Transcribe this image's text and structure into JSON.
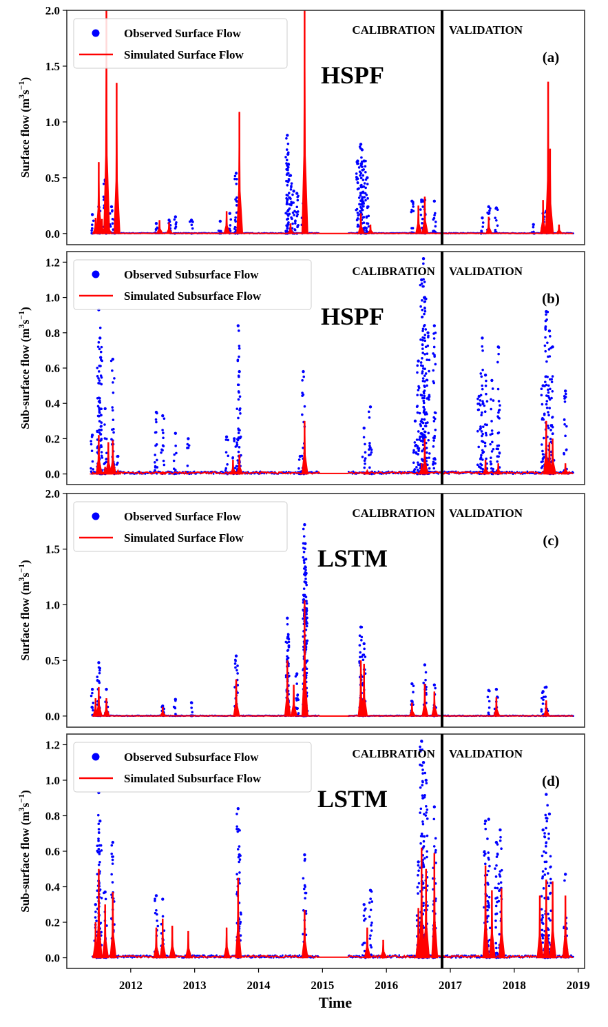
{
  "colors": {
    "observed": "#0000ff",
    "simulated": "#ff0000",
    "divider": "#000000",
    "frame": "#333333"
  },
  "chart_data": [
    {
      "type": "line",
      "panel_label": "(a)",
      "model_label": "HSPF",
      "period_labels": [
        "CALIBRATION",
        "VALIDATION"
      ],
      "split_x": 2016.87,
      "ylabel": "Surface flow (m3s-1)",
      "ylabel_base": "Surface flow (m",
      "ylim": [
        -0.1,
        2.0
      ],
      "yticks": [
        0.0,
        0.5,
        1.0,
        1.5,
        2.0
      ],
      "ytick_labels": [
        "0.0",
        "0.5",
        "1.0",
        "1.5",
        "2.0"
      ],
      "legend": [
        "Observed Surface Flow",
        "Simulated Surface Flow"
      ],
      "legend_placement": "top-left",
      "series": [
        {
          "name": "Observed Surface Flow",
          "kind": "scatter",
          "x": [
            2011.4,
            2011.5,
            2011.6,
            2011.62,
            2011.7,
            2011.75,
            2012.4,
            2012.6,
            2012.7,
            2012.95,
            2013.4,
            2013.55,
            2013.65,
            2013.68,
            2014.45,
            2014.46,
            2014.5,
            2014.55,
            2014.6,
            2014.7,
            2015.55,
            2015.6,
            2015.62,
            2015.65,
            2015.7,
            2016.4,
            2016.55,
            2016.6,
            2016.75,
            2017.5,
            2017.6,
            2017.72,
            2018.3,
            2018.45,
            2018.5
          ],
          "y": [
            0.17,
            0.24,
            0.48,
            0.22,
            0.24,
            0.12,
            0.09,
            0.12,
            0.15,
            0.12,
            0.11,
            0.18,
            0.54,
            0.19,
            0.88,
            0.71,
            0.52,
            0.38,
            0.36,
            0.27,
            0.65,
            0.8,
            0.75,
            0.65,
            0.5,
            0.29,
            0.3,
            0.3,
            0.29,
            0.14,
            0.24,
            0.23,
            0.08,
            0.18,
            0.2
          ]
        },
        {
          "name": "Simulated Surface Flow",
          "kind": "line",
          "x": [
            2011.45,
            2011.5,
            2011.55,
            2011.62,
            2011.65,
            2011.78,
            2012.45,
            2012.6,
            2013.5,
            2013.7,
            2014.5,
            2014.72,
            2015.6,
            2015.75,
            2016.5,
            2016.6,
            2017.6,
            2018.45,
            2018.53,
            2018.56,
            2018.7
          ],
          "y": [
            0.14,
            0.64,
            0.13,
            2.0,
            0.12,
            1.35,
            0.12,
            0.1,
            0.2,
            1.09,
            0.09,
            2.0,
            0.18,
            0.08,
            0.25,
            0.33,
            0.15,
            0.3,
            1.36,
            0.76,
            0.08
          ]
        }
      ]
    },
    {
      "type": "line",
      "panel_label": "(b)",
      "model_label": "HSPF",
      "period_labels": [
        "CALIBRATION",
        "VALIDATION"
      ],
      "split_x": 2016.87,
      "ylabel": "Sub-surface flow (m3s-1)",
      "ylabel_base": "Sub-surface flow (m",
      "ylim": [
        -0.06,
        1.26
      ],
      "yticks": [
        0.0,
        0.2,
        0.4,
        0.6,
        0.8,
        1.0,
        1.2
      ],
      "ytick_labels": [
        "0.0",
        "0.2",
        "0.4",
        "0.6",
        "0.8",
        "1.0",
        "1.2"
      ],
      "legend": [
        "Observed Subsurface Flow",
        "Simulated Subsurface Flow"
      ],
      "legend_placement": "top-left",
      "series": [
        {
          "name": "Observed Subsurface Flow",
          "kind": "scatter",
          "x": [
            2011.4,
            2011.5,
            2011.52,
            2011.53,
            2011.6,
            2011.72,
            2011.8,
            2012.4,
            2012.5,
            2012.7,
            2012.9,
            2013.5,
            2013.62,
            2013.68,
            2013.7,
            2014.65,
            2014.7,
            2015.65,
            2015.75,
            2016.45,
            2016.5,
            2016.55,
            2016.58,
            2016.6,
            2016.65,
            2016.75,
            2017.45,
            2017.5,
            2017.55,
            2017.65,
            2017.75,
            2018.45,
            2018.5,
            2018.55,
            2018.6,
            2018.8
          ],
          "y": [
            0.22,
            0.93,
            0.77,
            0.66,
            0.37,
            0.65,
            0.1,
            0.35,
            0.33,
            0.23,
            0.2,
            0.21,
            0.2,
            0.84,
            0.58,
            0.1,
            0.58,
            0.26,
            0.38,
            0.3,
            0.64,
            1.1,
            1.22,
            1.0,
            0.8,
            0.84,
            0.44,
            0.77,
            0.56,
            0.53,
            0.72,
            0.5,
            0.92,
            0.81,
            0.72,
            0.47
          ]
        },
        {
          "name": "Simulated Subsurface Flow",
          "kind": "line",
          "x": [
            2011.4,
            2011.5,
            2011.6,
            2011.65,
            2011.72,
            2011.8,
            2012.5,
            2013.6,
            2013.7,
            2014.72,
            2015.7,
            2016.55,
            2016.6,
            2017.55,
            2017.75,
            2018.5,
            2018.55,
            2018.6,
            2018.8
          ],
          "y": [
            0.0,
            0.22,
            0.04,
            0.18,
            0.19,
            0.02,
            0.01,
            0.08,
            0.11,
            0.3,
            0.02,
            0.06,
            0.2,
            0.08,
            0.06,
            0.3,
            0.18,
            0.2,
            0.06
          ]
        }
      ]
    },
    {
      "type": "line",
      "panel_label": "(c)",
      "model_label": "LSTM",
      "period_labels": [
        "CALIBRATION",
        "VALIDATION"
      ],
      "split_x": 2016.87,
      "ylabel": "Surface flow (m3s-1)",
      "ylabel_base": "Surface flow (m",
      "ylim": [
        -0.1,
        2.0
      ],
      "yticks": [
        0.0,
        0.5,
        1.0,
        1.5,
        2.0
      ],
      "ytick_labels": [
        "0.0",
        "0.5",
        "1.0",
        "1.5",
        "2.0"
      ],
      "legend": [
        "Observed Surface Flow",
        "Simulated Surface Flow"
      ],
      "legend_placement": "top-left",
      "series": [
        {
          "name": "Observed Surface Flow",
          "kind": "scatter",
          "x": [
            2011.4,
            2011.5,
            2011.62,
            2012.5,
            2012.7,
            2012.95,
            2013.65,
            2014.45,
            2014.46,
            2014.6,
            2014.72,
            2014.73,
            2014.74,
            2015.6,
            2015.65,
            2016.4,
            2016.6,
            2016.75,
            2017.6,
            2017.72,
            2018.45,
            2018.5
          ],
          "y": [
            0.24,
            0.48,
            0.24,
            0.09,
            0.15,
            0.12,
            0.54,
            0.88,
            0.71,
            0.38,
            1.72,
            1.55,
            1.2,
            0.8,
            0.65,
            0.29,
            0.46,
            0.28,
            0.23,
            0.24,
            0.22,
            0.26
          ]
        },
        {
          "name": "Simulated Surface Flow",
          "kind": "line",
          "x": [
            2011.45,
            2011.5,
            2011.62,
            2012.5,
            2013.65,
            2014.45,
            2014.55,
            2014.72,
            2015.6,
            2015.65,
            2016.4,
            2016.6,
            2016.75,
            2017.72,
            2018.5
          ],
          "y": [
            0.16,
            0.26,
            0.16,
            0.08,
            0.33,
            0.5,
            0.28,
            1.04,
            0.5,
            0.47,
            0.12,
            0.29,
            0.22,
            0.17,
            0.14
          ]
        }
      ]
    },
    {
      "type": "line",
      "panel_label": "(d)",
      "model_label": "LSTM",
      "period_labels": [
        "CALIBRATION",
        "VALIDATION"
      ],
      "split_x": 2016.87,
      "ylabel": "Sub-surface flow (m3s-1)",
      "ylabel_base": "Sub-surface flow (m",
      "ylim": [
        -0.06,
        1.26
      ],
      "yticks": [
        0.0,
        0.2,
        0.4,
        0.6,
        0.8,
        1.0,
        1.2
      ],
      "ytick_labels": [
        "0.0",
        "0.2",
        "0.4",
        "0.6",
        "0.8",
        "1.0",
        "1.2"
      ],
      "legend": [
        "Observed Subsurface Flow",
        "Simulated Subsurface Flow"
      ],
      "legend_placement": "top-left",
      "series": [
        {
          "name": "Observed Subsurface Flow",
          "kind": "scatter",
          "x": [
            2011.45,
            2011.5,
            2011.52,
            2011.6,
            2011.72,
            2012.4,
            2012.5,
            2013.68,
            2013.7,
            2014.72,
            2015.65,
            2015.75,
            2016.5,
            2016.55,
            2016.58,
            2016.62,
            2016.75,
            2017.55,
            2017.6,
            2017.72,
            2017.78,
            2018.45,
            2018.5,
            2018.55,
            2018.8
          ],
          "y": [
            0.3,
            0.93,
            0.77,
            0.37,
            0.65,
            0.35,
            0.33,
            0.84,
            0.58,
            0.58,
            0.3,
            0.38,
            0.54,
            1.22,
            1.1,
            1.0,
            0.85,
            0.77,
            0.78,
            0.65,
            0.72,
            0.72,
            0.92,
            0.81,
            0.47
          ]
        },
        {
          "name": "Simulated Subsurface Flow",
          "kind": "line",
          "x": [
            2011.45,
            2011.5,
            2011.6,
            2011.72,
            2012.4,
            2012.5,
            2012.65,
            2012.9,
            2013.5,
            2013.68,
            2014.72,
            2015.7,
            2015.95,
            2016.5,
            2016.55,
            2016.62,
            2016.75,
            2017.55,
            2017.65,
            2017.8,
            2018.4,
            2018.5,
            2018.6,
            2018.8
          ],
          "y": [
            0.2,
            0.5,
            0.3,
            0.37,
            0.17,
            0.22,
            0.18,
            0.15,
            0.17,
            0.45,
            0.27,
            0.17,
            0.1,
            0.28,
            0.62,
            0.5,
            0.59,
            0.52,
            0.38,
            0.39,
            0.35,
            0.44,
            0.43,
            0.35
          ]
        }
      ]
    }
  ],
  "x_axis": {
    "xlabel": "Time",
    "xlim": [
      2011.0,
      2019.1
    ],
    "ticks": [
      2012,
      2013,
      2014,
      2015,
      2016,
      2017,
      2018,
      2019
    ],
    "tick_labels": [
      "2012",
      "2013",
      "2014",
      "2015",
      "2016",
      "2017",
      "2018",
      "2019"
    ],
    "data_start": 2011.4,
    "data_end": 2018.93
  }
}
